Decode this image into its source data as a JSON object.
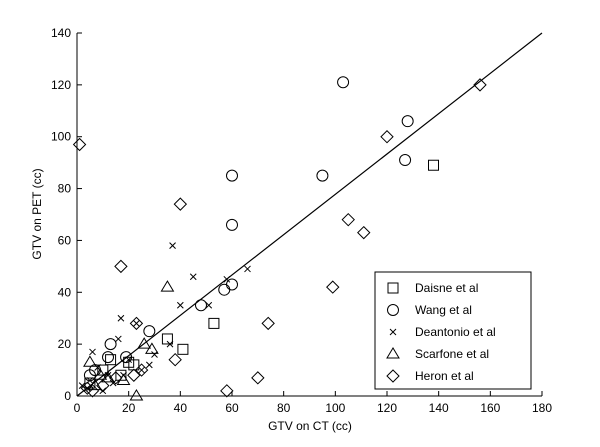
{
  "chart_data": {
    "type": "scatter",
    "xlabel": "GTV on CT (cc)",
    "ylabel": "GTV on PET (cc)",
    "xlim": [
      0,
      180
    ],
    "ylim": [
      0,
      140
    ],
    "xticks": [
      0,
      20,
      40,
      60,
      80,
      100,
      120,
      140,
      160,
      180
    ],
    "yticks": [
      0,
      20,
      40,
      60,
      80,
      100,
      120,
      140
    ],
    "grid": false,
    "legend_position": "bottom-right",
    "reference_line": {
      "from": [
        0,
        0
      ],
      "to": [
        180,
        140
      ]
    },
    "series": [
      {
        "name": "Daisne et al",
        "marker": "square",
        "points": [
          [
            5,
            5
          ],
          [
            10,
            10
          ],
          [
            13,
            14
          ],
          [
            17,
            8
          ],
          [
            20,
            13
          ],
          [
            22,
            12
          ],
          [
            35,
            22
          ],
          [
            41,
            18
          ],
          [
            53,
            28
          ],
          [
            138,
            89
          ]
        ]
      },
      {
        "name": "Wang et al",
        "marker": "circle",
        "points": [
          [
            5,
            8
          ],
          [
            7,
            10
          ],
          [
            12,
            15
          ],
          [
            13,
            20
          ],
          [
            19,
            15
          ],
          [
            28,
            25
          ],
          [
            48,
            35
          ],
          [
            57,
            41
          ],
          [
            60,
            43
          ],
          [
            60,
            85
          ],
          [
            60,
            66
          ],
          [
            95,
            85
          ],
          [
            103,
            121
          ],
          [
            127,
            91
          ],
          [
            128,
            106
          ]
        ]
      },
      {
        "name": "Deantonio et al",
        "marker": "x",
        "points": [
          [
            2,
            4
          ],
          [
            4,
            3
          ],
          [
            5,
            6
          ],
          [
            6,
            17
          ],
          [
            8,
            11
          ],
          [
            10,
            2
          ],
          [
            12,
            8
          ],
          [
            14,
            5
          ],
          [
            16,
            22
          ],
          [
            17,
            30
          ],
          [
            18,
            8
          ],
          [
            20,
            14
          ],
          [
            23,
            28
          ],
          [
            25,
            10
          ],
          [
            28,
            12
          ],
          [
            30,
            16
          ],
          [
            36,
            20
          ],
          [
            37,
            58
          ],
          [
            40,
            35
          ],
          [
            45,
            46
          ],
          [
            51,
            35
          ],
          [
            58,
            45
          ],
          [
            66,
            49
          ]
        ]
      },
      {
        "name": "Scarfone et al",
        "marker": "triangle",
        "points": [
          [
            5,
            13
          ],
          [
            7,
            4
          ],
          [
            9,
            8
          ],
          [
            12,
            7
          ],
          [
            18,
            6
          ],
          [
            23,
            0
          ],
          [
            26,
            20
          ],
          [
            29,
            18
          ],
          [
            35,
            42
          ]
        ]
      },
      {
        "name": "Heron et al",
        "marker": "diamond",
        "points": [
          [
            1,
            97
          ],
          [
            4,
            3
          ],
          [
            6,
            2
          ],
          [
            10,
            4
          ],
          [
            15,
            7
          ],
          [
            17,
            50
          ],
          [
            22,
            8
          ],
          [
            23,
            28
          ],
          [
            25,
            10
          ],
          [
            38,
            14
          ],
          [
            40,
            74
          ],
          [
            58,
            2
          ],
          [
            70,
            7
          ],
          [
            74,
            28
          ],
          [
            99,
            42
          ],
          [
            105,
            68
          ],
          [
            111,
            63
          ],
          [
            120,
            100
          ],
          [
            156,
            120
          ]
        ]
      }
    ]
  }
}
